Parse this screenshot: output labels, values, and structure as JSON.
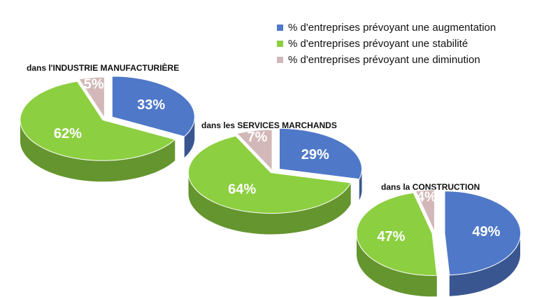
{
  "legend": [
    {
      "label": "% d'entreprises prévoyant une augmentation",
      "color": "#4f78c8"
    },
    {
      "label": "% d'entreprises prévoyant une stabilité",
      "color": "#8ccf40"
    },
    {
      "label": "% d'entreprises prévoyant une diminution",
      "color": "#d2b8b8"
    }
  ],
  "chart_data": [
    {
      "type": "pie",
      "title_lead": "dans l'",
      "title_main": "INDUSTRIE MANUFACTURIÈRE",
      "slices": [
        {
          "name": "augmentation",
          "value": 33,
          "label": "33%"
        },
        {
          "name": "stabilité",
          "value": 62,
          "label": "62%"
        },
        {
          "name": "diminution",
          "value": 5,
          "label": "5%"
        }
      ]
    },
    {
      "type": "pie",
      "title_lead": "dans les ",
      "title_main": "SERVICES MARCHANDS",
      "slices": [
        {
          "name": "augmentation",
          "value": 29,
          "label": "29%"
        },
        {
          "name": "stabilité",
          "value": 64,
          "label": "64%"
        },
        {
          "name": "diminution",
          "value": 7,
          "label": "7%"
        }
      ]
    },
    {
      "type": "pie",
      "title_lead": "dans la ",
      "title_main": "CONSTRUCTION",
      "slices": [
        {
          "name": "augmentation",
          "value": 49,
          "label": "49%"
        },
        {
          "name": "stabilité",
          "value": 47,
          "label": "47%"
        },
        {
          "name": "diminution",
          "value": 4,
          "label": "4%"
        }
      ]
    }
  ]
}
